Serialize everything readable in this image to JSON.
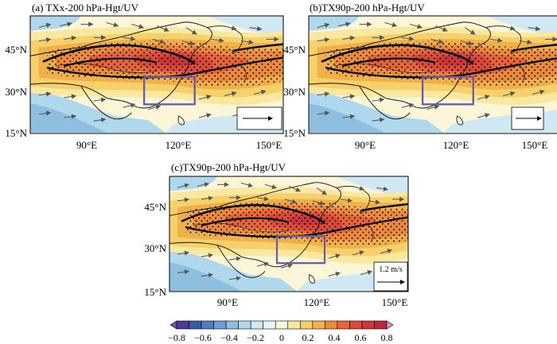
{
  "panels": [
    {
      "title": "(a) TXx-200 hPa-Hgt/UV"
    },
    {
      "title": "(b)TX90p-200 hPa-Hgt/UV"
    },
    {
      "title": "(c)TX90p-200 hPa-Hgt/UV",
      "ref_vector_label": "1.2 m/s"
    }
  ],
  "axes": {
    "lat_ticks": [
      "15°N",
      "30°N",
      "45°N"
    ],
    "lon_ticks": [
      "90°E",
      "120°E",
      "150°E"
    ]
  },
  "colorbar": {
    "tick_labels": [
      "−0.8",
      "−0.6",
      "−0.4",
      "−0.2",
      "0",
      "0.2",
      "0.4",
      "0.6",
      "0.8"
    ],
    "colors": [
      "#7b4fa8",
      "#4b3c96",
      "#3b5aa8",
      "#4f7fc0",
      "#6f9fd2",
      "#8fbfe0",
      "#b0d8ec",
      "#cfe8f4",
      "#e8f4fa",
      "#fbf6d8",
      "#f8e8a0",
      "#f6d06a",
      "#f2b04a",
      "#ee8a3c",
      "#e8643a",
      "#dd4a3c",
      "#cc3838",
      "#b82a3a",
      "#e28cc8"
    ]
  }
}
